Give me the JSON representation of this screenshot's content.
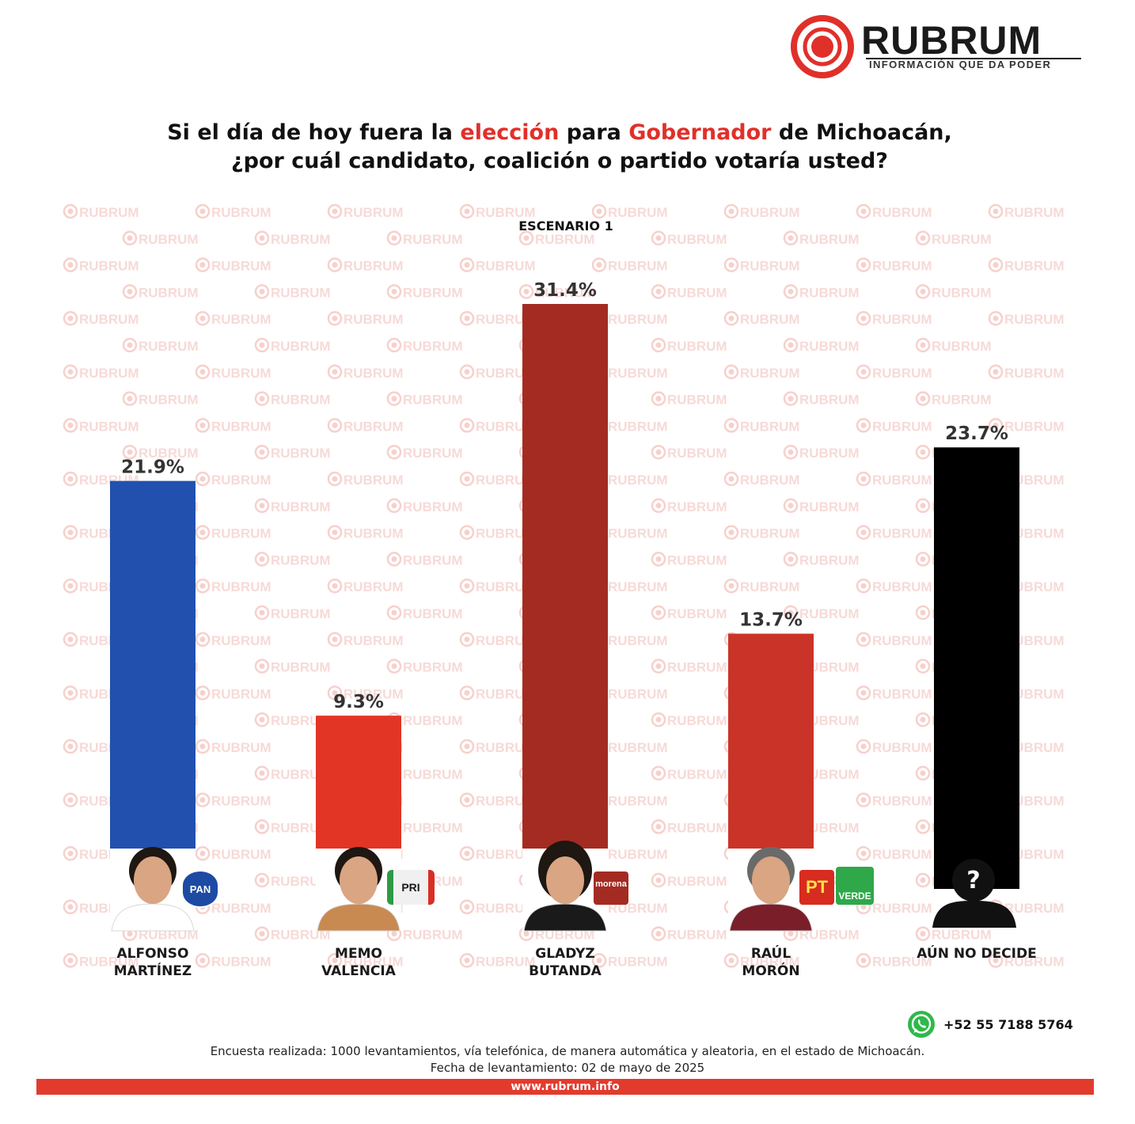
{
  "brand": {
    "name": "RUBRUM",
    "tagline": "INFORMACIÓN QUE DA PODER",
    "watermark_text": "RUBRUM",
    "accent_color": "#e0302a"
  },
  "question": {
    "part1": "Si el día de hoy fuera la ",
    "highlight1": "elección",
    "part2": " para ",
    "highlight2": "Gobernador",
    "part3": " de Michoacán,",
    "line2": "¿por cuál candidato, coalición o partido votaría usted?"
  },
  "chart_data": {
    "type": "bar",
    "title": "ESCENARIO 1",
    "categories": [
      "ALFONSO\nMARTÍNEZ",
      "MEMO\nVALENCIA",
      "GLADYZ\nBUTANDA",
      "RAÚL\nMORÓN",
      "AÚN NO DECIDE"
    ],
    "values": [
      21.9,
      9.3,
      31.4,
      13.7,
      23.7
    ],
    "value_labels": [
      "21.9%",
      "9.3%",
      "31.4%",
      "13.7%",
      "23.7%"
    ],
    "colors": [
      "#2250ae",
      "#e23526",
      "#a42b22",
      "#ca3428",
      "#000000"
    ],
    "parties": [
      [
        "PAN"
      ],
      [
        "PRI"
      ],
      [
        "morena"
      ],
      [
        "PT",
        "VERDE"
      ],
      []
    ],
    "avatar_icons": [
      "person-photo",
      "person-photo",
      "person-photo",
      "person-photo",
      "unknown-person-icon"
    ],
    "ylim": [
      0,
      31.4
    ],
    "grid": false,
    "legend": "none"
  },
  "footer": {
    "phone": "+52 55 7188 5764",
    "methodology": "Encuesta realizada: 1000 levantamientos, vía telefónica, de manera automática y aleatoria, en el estado de Michoacán.",
    "date": "Fecha de levantamiento: 02 de mayo de 2025",
    "website": "www.rubrum.info",
    "bar_color": "#e23b2e"
  }
}
